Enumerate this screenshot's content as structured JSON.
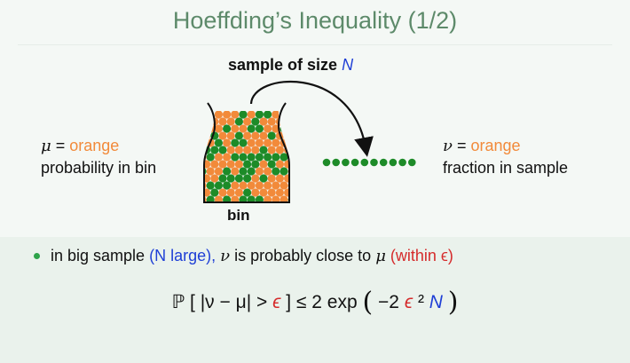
{
  "title": "Hoeffding’s Inequality (1/2)",
  "diagram": {
    "sample_caption": "sample of size",
    "sample_symbol": "N",
    "bin_label": "bin",
    "marble_colors": {
      "orange": "#f28a3a",
      "green": "#1d8b28"
    },
    "sample_colors": [
      "green",
      "green",
      "green",
      "green",
      "green",
      "green",
      "green",
      "green",
      "green",
      "green"
    ]
  },
  "left": {
    "mu_symbol": "μ",
    "equals": "=",
    "mu_value": "orange",
    "meaning": "probability in bin"
  },
  "right": {
    "nu_symbol": "ν",
    "equals": "=",
    "nu_value": "orange",
    "meaning": "fraction in sample"
  },
  "bullet": {
    "part1": "in big sample",
    "part2": "(N large),",
    "nu": "ν",
    "part3": "is probably close to",
    "mu": "μ",
    "part4": "(within ϵ)"
  },
  "formula": {
    "left": "ℙ [ |ν − μ| >",
    "epsilon": "ϵ",
    "middle": "] ≤ 2 exp",
    "open_paren": "(",
    "neg_two": "−2",
    "epsilon2": "ϵ",
    "squared": "²",
    "n": "N",
    "close_paren": ")"
  },
  "colors": {
    "title": "#5d8a6a",
    "accent_blue": "#1f3fd6",
    "accent_red": "#d52b2b",
    "accent_orange": "#f28a3a",
    "panel": "#eaf2ec"
  }
}
